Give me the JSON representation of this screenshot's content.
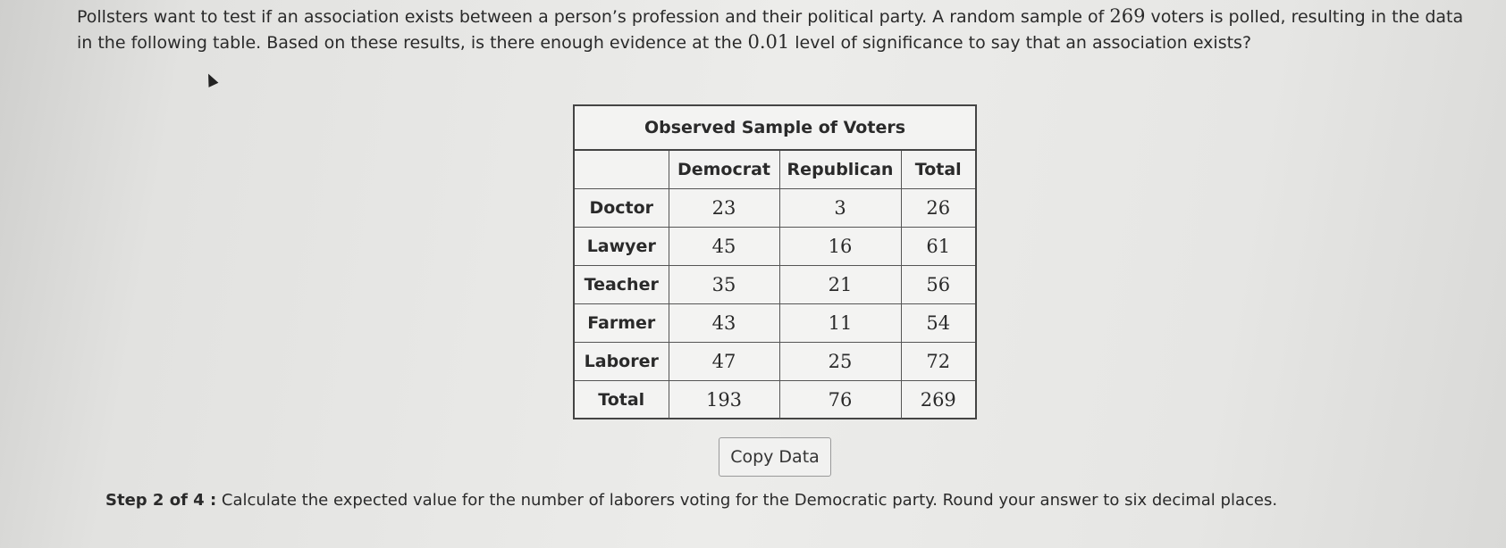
{
  "question": {
    "part1": "Pollsters want to test if an association exists between a person’s profession and their political party. A random sample of ",
    "sample_size": "269",
    "part2": " voters is polled, resulting in the data in the following table. Based on these results, is there enough evidence at the ",
    "significance": "0.01",
    "part3": " level of significance to say that an association exists?"
  },
  "table": {
    "title": "Observed Sample of Voters",
    "headers": [
      "",
      "Democrat",
      "Republican",
      "Total"
    ],
    "rows": [
      {
        "label": "Doctor",
        "values": [
          "23",
          "3",
          "26"
        ]
      },
      {
        "label": "Lawyer",
        "values": [
          "45",
          "16",
          "61"
        ]
      },
      {
        "label": "Teacher",
        "values": [
          "35",
          "21",
          "56"
        ]
      },
      {
        "label": "Farmer",
        "values": [
          "43",
          "11",
          "54"
        ]
      },
      {
        "label": "Laborer",
        "values": [
          "47",
          "25",
          "72"
        ]
      },
      {
        "label": "Total",
        "values": [
          "193",
          "76",
          "269"
        ]
      }
    ]
  },
  "copy_button": {
    "label": "Copy Data"
  },
  "step": {
    "label": "Step 2 of 4 :",
    "text": " Calculate the expected value for the number of laborers voting for the Democratic party. Round your answer to six decimal places."
  }
}
